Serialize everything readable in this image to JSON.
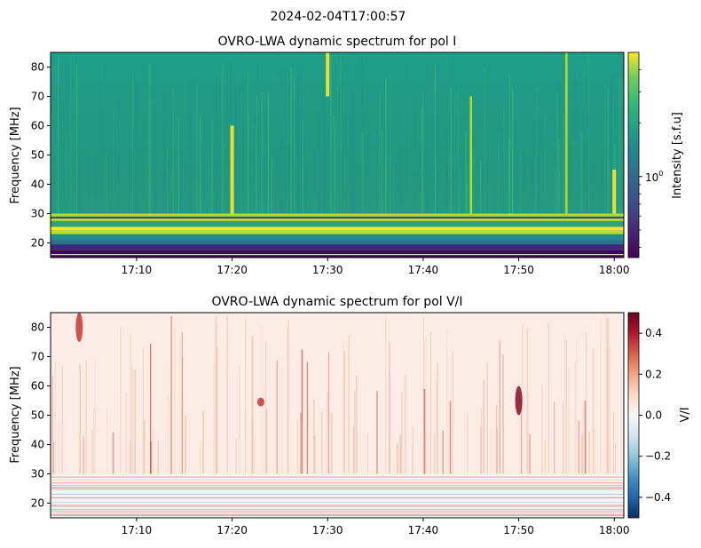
{
  "suptitle": "2024-02-04T17:00:57",
  "chart_data": [
    {
      "type": "heatmap",
      "title": "OVRO-LWA dynamic spectrum for pol I",
      "ylabel": "Frequency [MHz]",
      "xlabel": "",
      "x_range": [
        "17:01",
        "18:01"
      ],
      "x_ticks": [
        "17:10",
        "17:20",
        "17:30",
        "17:40",
        "17:50",
        "18:00"
      ],
      "y_range": [
        15,
        85
      ],
      "y_ticks": [
        20,
        30,
        40,
        50,
        60,
        70,
        80
      ],
      "colormap": "viridis",
      "colorbar": {
        "label": "Intensity [s.f.u]",
        "scale": "log",
        "tick_labels": [
          "10^0"
        ],
        "range": [
          0.35,
          5
        ]
      },
      "features": [
        {
          "type": "vertical_burst",
          "time": "17:20",
          "freq_range": [
            30,
            60
          ],
          "intensity": "high"
        },
        {
          "type": "vertical_burst",
          "time": "17:30",
          "freq_range": [
            70,
            85
          ],
          "intensity": "high"
        },
        {
          "type": "vertical_burst",
          "time": "17:45",
          "freq_range": [
            30,
            70
          ],
          "intensity": "medium"
        },
        {
          "type": "vertical_burst",
          "time": "17:55",
          "freq_range": [
            30,
            85
          ],
          "intensity": "medium"
        },
        {
          "type": "vertical_burst",
          "time": "18:00",
          "freq_range": [
            30,
            45
          ],
          "intensity": "high"
        },
        {
          "type": "rfi_band",
          "freq_range": [
            15,
            19
          ],
          "intensity": "low"
        },
        {
          "type": "rfi_band",
          "freq_range": [
            23,
            26
          ],
          "intensity": "high"
        },
        {
          "type": "rfi_band",
          "freq_range": [
            28,
            30
          ],
          "intensity": "high"
        }
      ]
    },
    {
      "type": "heatmap",
      "title": "OVRO-LWA dynamic spectrum for pol V/I",
      "ylabel": "Frequency [MHz]",
      "xlabel": "",
      "x_range": [
        "17:01",
        "18:01"
      ],
      "x_ticks": [
        "17:10",
        "17:20",
        "17:30",
        "17:40",
        "17:50",
        "18:00"
      ],
      "y_range": [
        15,
        85
      ],
      "y_ticks": [
        20,
        30,
        40,
        50,
        60,
        70,
        80
      ],
      "colormap": "RdBu_r",
      "colorbar": {
        "label": "V/I",
        "scale": "linear",
        "range": [
          -0.5,
          0.5
        ],
        "tick_values": [
          0.4,
          0.2,
          0.0,
          -0.2,
          -0.4
        ],
        "tick_labels": [
          "0.4",
          "0.2",
          "0.0",
          "−0.2",
          "−0.4"
        ]
      },
      "features": [
        {
          "type": "polarized_patch",
          "time": "17:50",
          "freq_range": [
            50,
            60
          ],
          "value": 0.35
        },
        {
          "type": "polarized_patch",
          "time": "17:23",
          "freq_range": [
            53,
            56
          ],
          "value": 0.3
        },
        {
          "type": "polarized_patch",
          "time": "17:04",
          "freq_range": [
            75,
            85
          ],
          "value": 0.25
        }
      ]
    }
  ]
}
